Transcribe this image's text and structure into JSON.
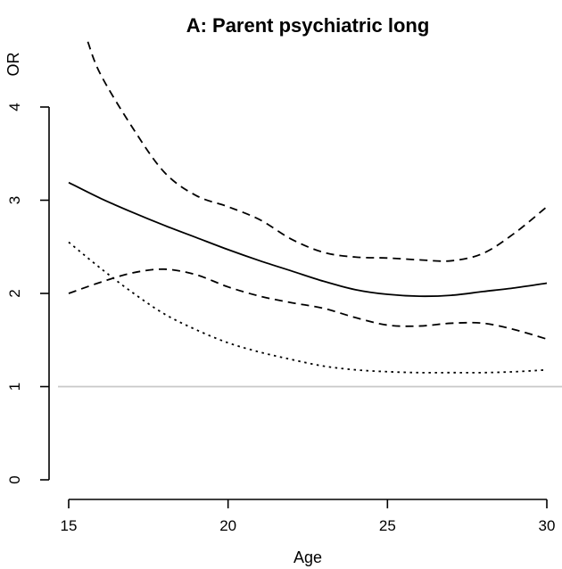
{
  "chart_data": {
    "type": "line",
    "title": "A: Parent psychiatric long",
    "xlabel": "Age",
    "ylabel": "OR",
    "xlim": [
      15,
      30
    ],
    "ylim": [
      0,
      4
    ],
    "x_ticks": [
      "15",
      "20",
      "25",
      "30"
    ],
    "y_ticks": [
      "0",
      "1",
      "2",
      "3",
      "4"
    ],
    "reference_line": {
      "y": 1,
      "color": "#c8c8c8"
    },
    "series": [
      {
        "style": "solid",
        "color": "#000000",
        "x": [
          15,
          16,
          17,
          18,
          19,
          20,
          21,
          22,
          23,
          24,
          25,
          26,
          27,
          28,
          29,
          30
        ],
        "y": [
          3.19,
          3.02,
          2.87,
          2.73,
          2.6,
          2.47,
          2.35,
          2.24,
          2.13,
          2.04,
          1.99,
          1.97,
          1.98,
          2.02,
          2.06,
          2.11
        ]
      },
      {
        "style": "dashed",
        "color": "#000000",
        "x": [
          15.6,
          16,
          17,
          18,
          19,
          20,
          21,
          22,
          23,
          24,
          25,
          26,
          27,
          28,
          29,
          30
        ],
        "y": [
          4.7,
          4.35,
          3.78,
          3.3,
          3.05,
          2.93,
          2.79,
          2.58,
          2.44,
          2.39,
          2.38,
          2.36,
          2.35,
          2.43,
          2.65,
          2.93
        ]
      },
      {
        "style": "dashed",
        "color": "#000000",
        "x": [
          15,
          16,
          17,
          18,
          19,
          20,
          21,
          22,
          23,
          24,
          25,
          26,
          27,
          28,
          29,
          30
        ],
        "y": [
          2.0,
          2.12,
          2.22,
          2.26,
          2.2,
          2.07,
          1.97,
          1.9,
          1.84,
          1.74,
          1.66,
          1.65,
          1.68,
          1.68,
          1.61,
          1.51
        ]
      },
      {
        "style": "dotted",
        "color": "#000000",
        "x": [
          15,
          16,
          17,
          18,
          19,
          20,
          21,
          22,
          23,
          24,
          25,
          26,
          27,
          28,
          29,
          30
        ],
        "y": [
          2.55,
          2.27,
          2.01,
          1.78,
          1.61,
          1.47,
          1.37,
          1.29,
          1.22,
          1.18,
          1.16,
          1.15,
          1.15,
          1.15,
          1.16,
          1.18
        ]
      }
    ],
    "grid": false,
    "legend": "none"
  }
}
